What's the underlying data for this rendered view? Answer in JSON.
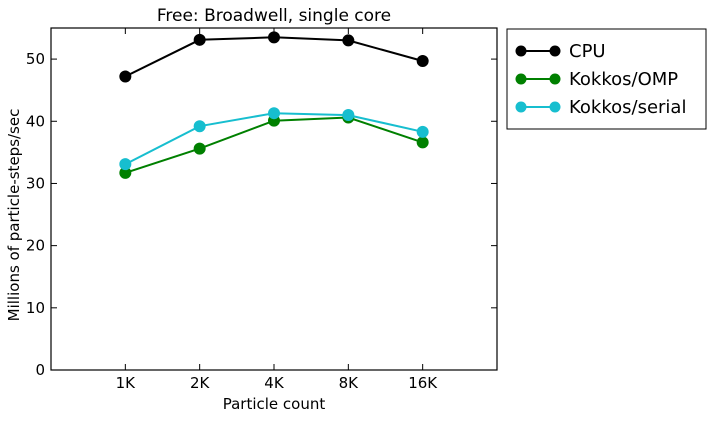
{
  "chart_data": {
    "type": "line",
    "title": "Free: Broadwell, single core",
    "xlabel": "Particle count",
    "ylabel": "Millions of particle-steps/sec",
    "categories": [
      "1K",
      "2K",
      "4K",
      "8K",
      "16K"
    ],
    "ylim": [
      0,
      55
    ],
    "yticks": [
      0,
      10,
      20,
      30,
      40,
      50
    ],
    "grid": false,
    "legend_position": "outside-right",
    "series": [
      {
        "name": "CPU",
        "color": "#000000",
        "values": [
          47.2,
          53.1,
          53.5,
          53.0,
          49.7
        ]
      },
      {
        "name": "Kokkos/OMP",
        "color": "#008000",
        "values": [
          31.7,
          35.6,
          40.1,
          40.6,
          36.6
        ]
      },
      {
        "name": "Kokkos/serial",
        "color": "#17becf",
        "values": [
          33.1,
          39.2,
          41.3,
          41.0,
          38.3
        ]
      }
    ]
  }
}
